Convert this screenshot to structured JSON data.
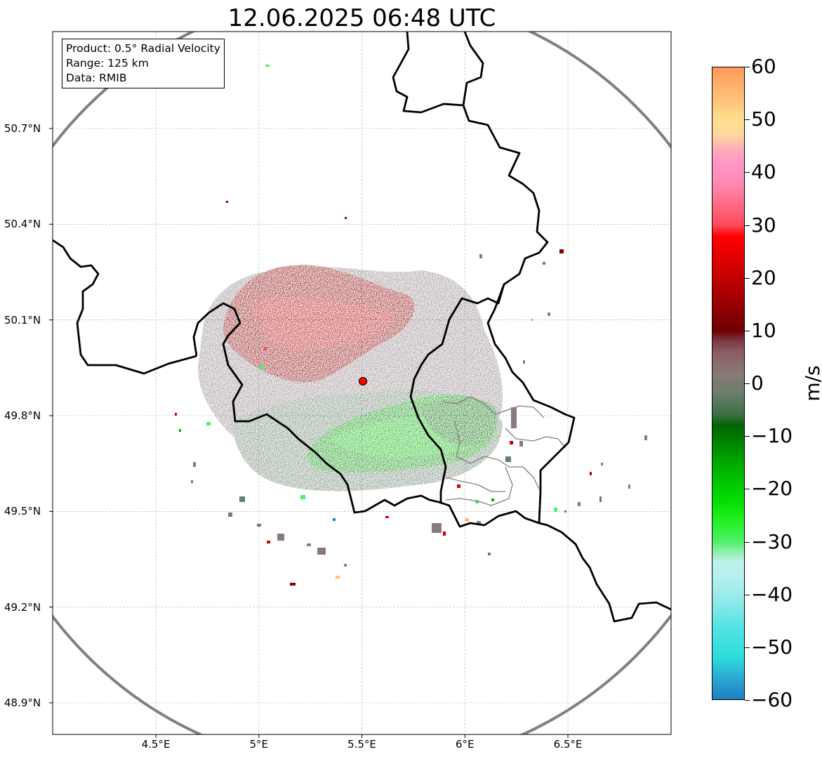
{
  "title": "12.06.2025 06:48 UTC",
  "info_box": {
    "product": "Product: 0.5° Radial Velocity",
    "range": "Range: 125 km",
    "data": "Data: RMIB"
  },
  "map": {
    "lon_range": [
      4.0,
      7.0
    ],
    "lat_range": [
      48.8,
      51.0
    ],
    "radar_site": {
      "lon": 5.505,
      "lat": 49.915,
      "marker": "red-circle"
    },
    "range_ring_km": 125,
    "grid": true,
    "x_ticks": [
      {
        "value": 4.5,
        "label": "4.5°E"
      },
      {
        "value": 5.0,
        "label": "5°E"
      },
      {
        "value": 5.5,
        "label": "5.5°E"
      },
      {
        "value": 6.0,
        "label": "6°E"
      },
      {
        "value": 6.5,
        "label": "6.5°E"
      }
    ],
    "y_ticks": [
      {
        "value": 50.7,
        "label": "50.7°N"
      },
      {
        "value": 50.4,
        "label": "50.4°N"
      },
      {
        "value": 50.1,
        "label": "50.1°N"
      },
      {
        "value": 49.8,
        "label": "49.8°N"
      },
      {
        "value": 49.5,
        "label": "49.5°N"
      },
      {
        "value": 49.2,
        "label": "49.2°N"
      },
      {
        "value": 48.9,
        "label": "48.9°N"
      }
    ],
    "colors": {
      "border": "#000000",
      "inner_border": "#808080",
      "range_ring": "#808080",
      "grid": "#b0b0b0",
      "radar_marker": "#ff0000"
    }
  },
  "colorbar": {
    "unit": "m/s",
    "min": -60,
    "max": 60,
    "ticks": [
      {
        "value": 60,
        "label": "60"
      },
      {
        "value": 50,
        "label": "50"
      },
      {
        "value": 40,
        "label": "40"
      },
      {
        "value": 30,
        "label": "30"
      },
      {
        "value": 20,
        "label": "20"
      },
      {
        "value": 10,
        "label": "10"
      },
      {
        "value": 0,
        "label": "0"
      },
      {
        "value": -10,
        "label": "−10"
      },
      {
        "value": -20,
        "label": "−20"
      },
      {
        "value": -30,
        "label": "−30"
      },
      {
        "value": -40,
        "label": "−40"
      },
      {
        "value": -50,
        "label": "−50"
      },
      {
        "value": -60,
        "label": "−60"
      }
    ],
    "stops": [
      {
        "value": -60,
        "color": "#1f7fc4"
      },
      {
        "value": -56,
        "color": "#2aa8d2"
      },
      {
        "value": -52,
        "color": "#2edddd"
      },
      {
        "value": -46,
        "color": "#56e3e3"
      },
      {
        "value": -42,
        "color": "#8ae8e8"
      },
      {
        "value": -38,
        "color": "#aeeeee"
      },
      {
        "value": -34,
        "color": "#bff1ee"
      },
      {
        "value": -32,
        "color": "#8ff0a8"
      },
      {
        "value": -30,
        "color": "#4ff06a"
      },
      {
        "value": -26,
        "color": "#22f022"
      },
      {
        "value": -22,
        "color": "#00dd00"
      },
      {
        "value": -16,
        "color": "#00b000"
      },
      {
        "value": -12,
        "color": "#008a00"
      },
      {
        "value": -8,
        "color": "#006400"
      },
      {
        "value": -6,
        "color": "#3c6e42"
      },
      {
        "value": -2,
        "color": "#6a7e6a"
      },
      {
        "value": 2,
        "color": "#8a7878"
      },
      {
        "value": 6,
        "color": "#8c5a64"
      },
      {
        "value": 8,
        "color": "#7a3c46"
      },
      {
        "value": 10,
        "color": "#6e0000"
      },
      {
        "value": 16,
        "color": "#a00000"
      },
      {
        "value": 22,
        "color": "#d40000"
      },
      {
        "value": 28,
        "color": "#ff0000"
      },
      {
        "value": 30,
        "color": "#ff4a5a"
      },
      {
        "value": 34,
        "color": "#ff6a84"
      },
      {
        "value": 38,
        "color": "#ff8ab4"
      },
      {
        "value": 42,
        "color": "#ff96c8"
      },
      {
        "value": 45,
        "color": "#ffb4b4"
      },
      {
        "value": 47,
        "color": "#ffd6a0"
      },
      {
        "value": 50,
        "color": "#ffe08e"
      },
      {
        "value": 54,
        "color": "#ffc07a"
      },
      {
        "value": 60,
        "color": "#ff9a5a"
      }
    ]
  }
}
